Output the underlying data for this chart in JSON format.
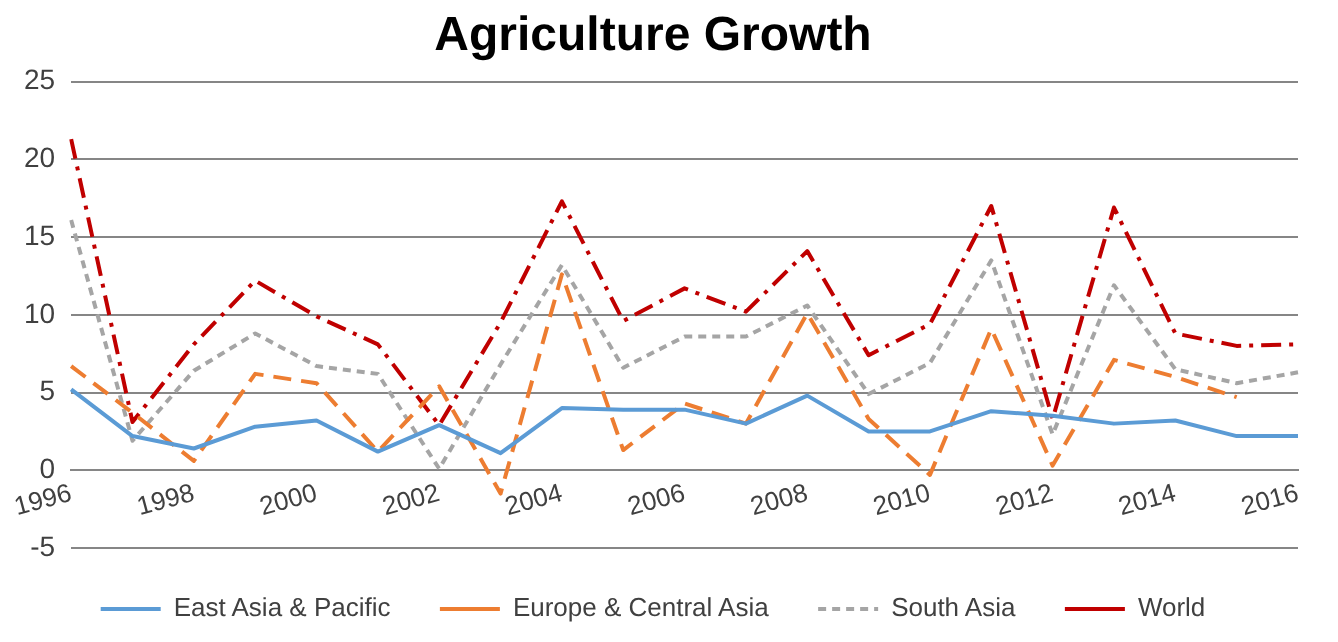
{
  "chart_data": {
    "type": "line",
    "title": "Agriculture Growth",
    "categories": [
      "1996",
      null,
      "1998",
      null,
      "2000",
      null,
      "2002",
      null,
      "2004",
      null,
      "2006",
      null,
      "2008",
      null,
      "2010",
      null,
      "2012",
      null,
      "2014",
      null,
      "2016"
    ],
    "series": [
      {
        "name": "East Asia & Pacific",
        "color": "#5b9bd5",
        "line_style": "solid",
        "values": [
          5.2,
          2.2,
          1.4,
          2.8,
          3.2,
          1.2,
          2.9,
          1.1,
          4.0,
          3.9,
          3.9,
          3.0,
          4.8,
          2.5,
          2.5,
          3.8,
          3.5,
          3.0,
          3.2,
          2.2,
          2.2
        ]
      },
      {
        "name": "Europe & Central Asia",
        "color": "#ed7d31",
        "line_style": "dashed",
        "values": [
          6.7,
          3.7,
          0.6,
          6.2,
          5.6,
          1.2,
          5.4,
          -1.5,
          12.6,
          1.3,
          4.3,
          3.0,
          10.1,
          3.3,
          -0.3,
          9.1,
          0.3,
          7.1,
          6.0,
          4.7,
          null
        ]
      },
      {
        "name": "South Asia",
        "color": "#a5a5a5",
        "line_style": "dashed",
        "values": [
          16.1,
          1.9,
          6.4,
          8.8,
          6.7,
          6.2,
          0.1,
          6.8,
          13.2,
          6.6,
          8.6,
          8.6,
          10.6,
          4.9,
          6.9,
          13.5,
          2.3,
          11.9,
          6.5,
          5.6,
          6.3
        ]
      },
      {
        "name": "World",
        "color": "#c00000",
        "line_style": "dashdot",
        "values": [
          21.3,
          3.1,
          8.1,
          12.2,
          9.9,
          8.1,
          2.9,
          9.5,
          17.3,
          9.6,
          11.7,
          10.2,
          14.1,
          7.4,
          9.4,
          17.0,
          3.3,
          16.9,
          8.8,
          8.0,
          8.1
        ]
      }
    ],
    "ylim": [
      -5,
      25
    ],
    "yticks": [
      -5,
      0,
      5,
      10,
      15,
      20,
      25
    ],
    "grid": "y",
    "legend": "bottom",
    "marker": "none"
  }
}
